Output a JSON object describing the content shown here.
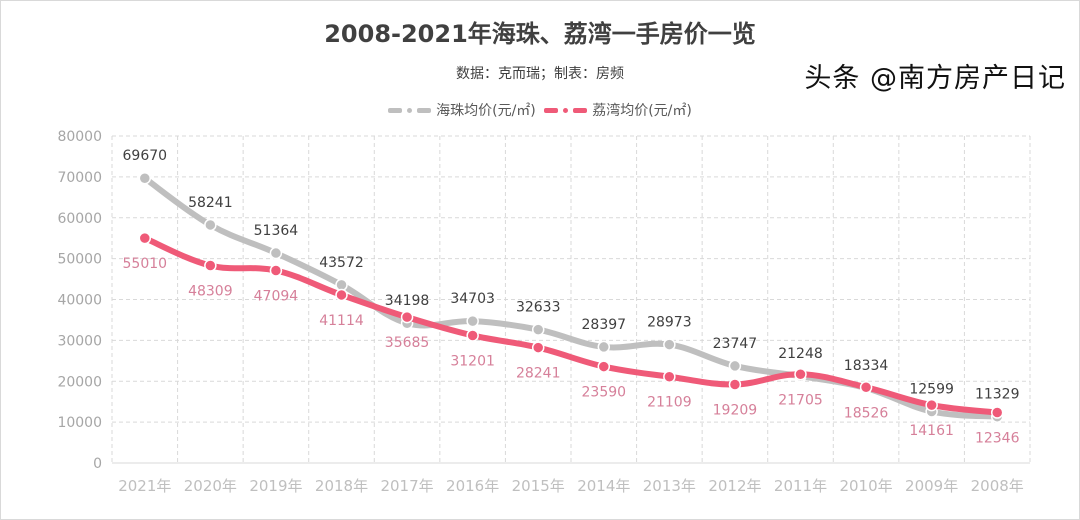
{
  "chart_data": {
    "type": "line",
    "title": "2008-2021年海珠、荔湾一手房价一览",
    "subtitle": "数据：克而瑞；制表：房频",
    "xlabel": "",
    "ylabel": "",
    "ylim": [
      0,
      80000
    ],
    "yticks": [
      "0",
      "10000",
      "20000",
      "30000",
      "40000",
      "50000",
      "60000",
      "70000",
      "80000"
    ],
    "categories": [
      "2021年",
      "2020年",
      "2019年",
      "2018年",
      "2017年",
      "2016年",
      "2015年",
      "2014年",
      "2013年",
      "2012年",
      "2011年",
      "2010年",
      "2009年",
      "2008年"
    ],
    "series": [
      {
        "name": "海珠均价(元/㎡)",
        "color": "#bfbfbf",
        "label_color": "#404040",
        "values": [
          69670,
          58241,
          51364,
          43572,
          34198,
          34703,
          32633,
          28397,
          28973,
          23747,
          21248,
          18334,
          12599,
          11329
        ]
      },
      {
        "name": "荔湾均价(元/㎡)",
        "color": "#ef5a78",
        "label_color": "#d6809a",
        "values": [
          55010,
          48309,
          47094,
          41114,
          35685,
          31201,
          28241,
          23590,
          21109,
          19209,
          21705,
          18526,
          14161,
          12346
        ]
      }
    ],
    "grid": true,
    "legend": "top"
  },
  "watermark": "头条 @南方房产日记"
}
